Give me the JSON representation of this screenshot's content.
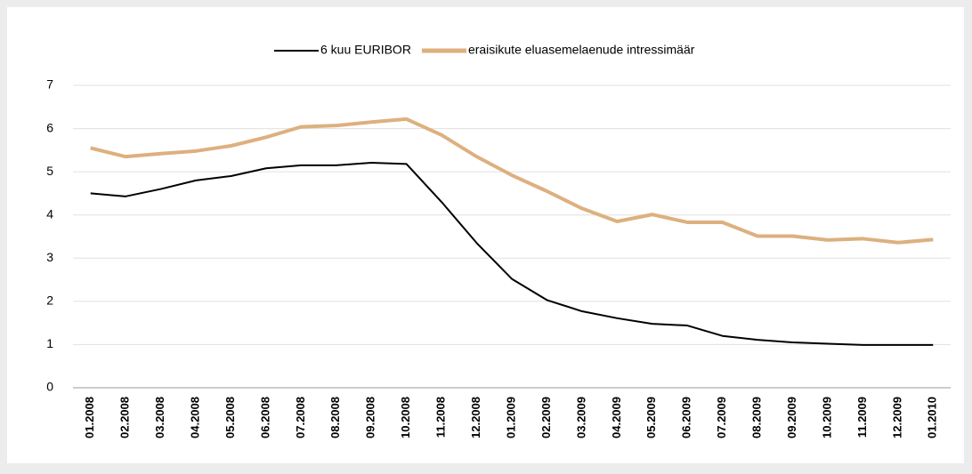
{
  "chart_data": {
    "type": "line",
    "categories": [
      "01.2008",
      "02.2008",
      "03.2008",
      "04.2008",
      "05.2008",
      "06.2008",
      "07.2008",
      "08.2008",
      "09.2008",
      "10.2008",
      "11.2008",
      "12.2008",
      "01.2009",
      "02.2009",
      "03.2009",
      "04.2009",
      "05.2009",
      "06.2009",
      "07.2009",
      "08.2009",
      "09.2009",
      "10.2009",
      "11.2009",
      "12.2009",
      "01.2010"
    ],
    "series": [
      {
        "name": "6 kuu EURIBOR",
        "color": "#000000",
        "values": [
          4.5,
          4.43,
          4.6,
          4.8,
          4.9,
          5.08,
          5.15,
          5.15,
          5.21,
          5.18,
          4.3,
          3.35,
          2.52,
          2.03,
          1.77,
          1.61,
          1.48,
          1.44,
          1.2,
          1.11,
          1.05,
          1.02,
          0.99,
          0.99,
          0.99
        ]
      },
      {
        "name": "eraisikute eluasemelaenude intressimäär",
        "color": "#ddb07f",
        "values": [
          5.55,
          5.35,
          5.42,
          5.48,
          5.6,
          5.8,
          6.04,
          6.07,
          6.15,
          6.22,
          5.85,
          5.35,
          4.92,
          4.55,
          4.15,
          3.85,
          4.01,
          3.83,
          3.83,
          3.51,
          3.51,
          3.42,
          3.45,
          3.36,
          3.43
        ]
      }
    ],
    "ylim": [
      0,
      7
    ],
    "yticks": [
      0,
      1,
      2,
      3,
      4,
      5,
      6,
      7
    ],
    "grid": true,
    "legend": "top"
  }
}
